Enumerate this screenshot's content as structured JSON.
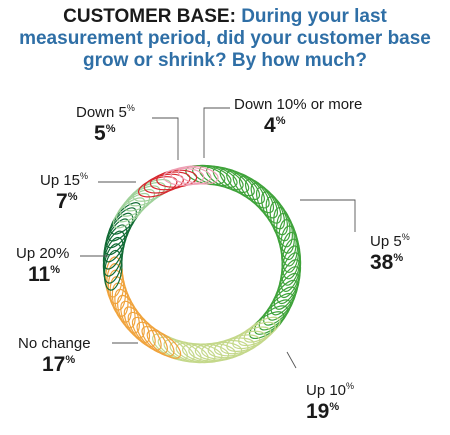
{
  "title": {
    "lead": "CUSTOMER BASE:",
    "question": "During your last measurement period, did your customer base grow or shrink? By how much?"
  },
  "chart_data": {
    "type": "pie",
    "categories": [
      "Up 5",
      "Up 10",
      "No change",
      "Up 20",
      "Up 15",
      "Down 5",
      "Down 10% or more"
    ],
    "values": [
      38,
      19,
      17,
      11,
      7,
      5,
      4
    ],
    "unit": "%",
    "colors": [
      "#3fa33a",
      "#c4d88a",
      "#f0a33c",
      "#116b35",
      "#9fd19a",
      "#d7282f",
      "#ef9fb4"
    ]
  },
  "labels": [
    {
      "name": "Up 5",
      "category": "Up 5",
      "value_text": "38",
      "unit": "%"
    },
    {
      "name": "Up 10",
      "category": "Up 10",
      "value_text": "19",
      "unit": "%"
    },
    {
      "name": "No change",
      "category": "No change",
      "value_text": "17",
      "unit": "%"
    },
    {
      "name": "Up 20",
      "category": "Up 20%",
      "value_text": "11",
      "unit": "%"
    },
    {
      "name": "Up 15",
      "category": "Up 15",
      "value_text": "7",
      "unit": "%"
    },
    {
      "name": "Down 5",
      "category": "Down 5",
      "value_text": "5",
      "unit": "%"
    },
    {
      "name": "Down 10% or more",
      "category": "Down 10% or more",
      "value_text": "4",
      "unit": "%"
    }
  ]
}
